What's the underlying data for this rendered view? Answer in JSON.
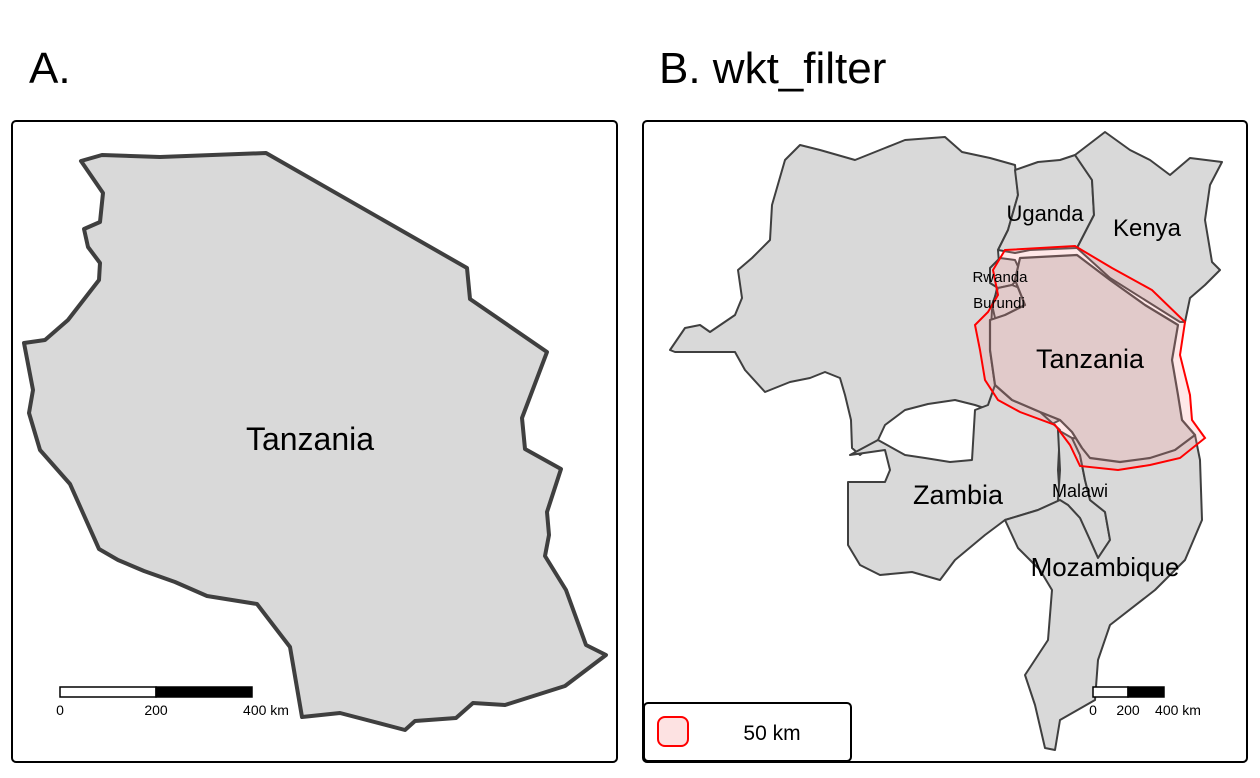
{
  "panels": {
    "a": {
      "title": "A.",
      "country_label": "Tanzania",
      "scalebar": {
        "ticks": [
          "0",
          "200",
          "400 km"
        ]
      }
    },
    "b": {
      "title": "B. wkt_filter",
      "country_labels": {
        "tanzania": "Tanzania",
        "uganda": "Uganda",
        "kenya": "Kenya",
        "rwanda": "Rwanda",
        "burundi": "Burundi",
        "zambia": "Zambia",
        "malawi": "Malawi",
        "mozambique": "Mozambique"
      },
      "legend": {
        "label": "50 km",
        "swatch_fill": "#fde2e2",
        "swatch_stroke": "#ff0000"
      },
      "scalebar": {
        "ticks": [
          "0",
          "200",
          "400 km"
        ]
      }
    }
  },
  "colors": {
    "land": "#d9d9d9",
    "border": "#3f3f3f",
    "buffer_outline": "#ff0000"
  }
}
